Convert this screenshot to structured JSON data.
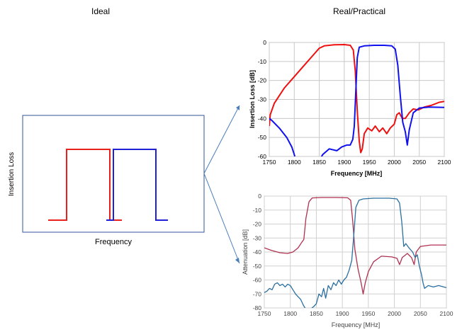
{
  "headings": {
    "ideal": "Ideal",
    "real": "Real/Practical"
  },
  "ideal_panel": {
    "ylabel": "Insertion Loss",
    "xlabel": "Frequency",
    "colors": {
      "frame": "#2f5597",
      "left": "#e8211d",
      "right": "#1f1fd6"
    }
  },
  "arrow_color": "#4a7ebb",
  "chart_data": [
    {
      "type": "line",
      "title": "",
      "xlabel": "Frequency [MHz]",
      "ylabel": "Insertion Loss [dB]",
      "xlim": [
        1750,
        2100
      ],
      "ylim": [
        -60,
        0
      ],
      "xticks": [
        "1750",
        "1800",
        "1850",
        "1900",
        "1950",
        "2000",
        "2050",
        "2100"
      ],
      "yticks": [
        "0",
        "-10",
        "-20",
        "-30",
        "-40",
        "-50",
        "-60"
      ],
      "grid": true,
      "series": [
        {
          "name": "red",
          "color": "#ee1111",
          "points": [
            [
              1750,
              -44
            ],
            [
              1752,
              -38
            ],
            [
              1760,
              -32
            ],
            [
              1780,
              -24
            ],
            [
              1800,
              -18
            ],
            [
              1820,
              -12
            ],
            [
              1840,
              -6
            ],
            [
              1850,
              -3
            ],
            [
              1860,
              -1.8
            ],
            [
              1880,
              -1.2
            ],
            [
              1900,
              -1.1
            ],
            [
              1912,
              -1.5
            ],
            [
              1918,
              -4
            ],
            [
              1922,
              -15
            ],
            [
              1926,
              -36
            ],
            [
              1930,
              -52
            ],
            [
              1933,
              -58
            ],
            [
              1936,
              -56
            ],
            [
              1940,
              -48
            ],
            [
              1947,
              -45
            ],
            [
              1955,
              -46.5
            ],
            [
              1962,
              -44
            ],
            [
              1970,
              -47
            ],
            [
              1977,
              -45
            ],
            [
              1985,
              -48
            ],
            [
              1992,
              -45
            ],
            [
              2000,
              -43
            ],
            [
              2005,
              -38
            ],
            [
              2010,
              -37
            ],
            [
              2016,
              -40
            ],
            [
              2022,
              -40
            ],
            [
              2030,
              -37
            ],
            [
              2038,
              -35
            ],
            [
              2048,
              -35.5
            ],
            [
              2060,
              -34
            ],
            [
              2075,
              -33
            ],
            [
              2090,
              -31.5
            ],
            [
              2100,
              -31
            ]
          ]
        },
        {
          "name": "blue",
          "color": "#1111ee",
          "points": [
            [
              1750,
              -40
            ],
            [
              1755,
              -41
            ],
            [
              1770,
              -45
            ],
            [
              1785,
              -50
            ],
            [
              1795,
              -55
            ],
            [
              1800,
              -59
            ],
            [
              1803,
              -62
            ],
            [
              1850,
              -62
            ],
            [
              1857,
              -59
            ],
            [
              1870,
              -56
            ],
            [
              1885,
              -57
            ],
            [
              1895,
              -55
            ],
            [
              1905,
              -54
            ],
            [
              1912,
              -54
            ],
            [
              1917,
              -51
            ],
            [
              1920,
              -44
            ],
            [
              1923,
              -26
            ],
            [
              1926,
              -8
            ],
            [
              1930,
              -2.5
            ],
            [
              1940,
              -1.8
            ],
            [
              1960,
              -1.5
            ],
            [
              1980,
              -1.5
            ],
            [
              1995,
              -1.8
            ],
            [
              2002,
              -3.5
            ],
            [
              2007,
              -12
            ],
            [
              2012,
              -28
            ],
            [
              2017,
              -42
            ],
            [
              2022,
              -47
            ],
            [
              2026,
              -54
            ],
            [
              2030,
              -46
            ],
            [
              2038,
              -37
            ],
            [
              2050,
              -34.5
            ],
            [
              2070,
              -34
            ],
            [
              2100,
              -34.2
            ]
          ]
        }
      ]
    },
    {
      "type": "line",
      "title": "",
      "xlabel": "Frequency [MHz]",
      "ylabel": "Attenuation [dB]",
      "xlim": [
        1750,
        2100
      ],
      "ylim": [
        -80,
        0
      ],
      "xticks": [
        "1750",
        "1800",
        "1850",
        "1900",
        "1950",
        "2000",
        "2050",
        "2100"
      ],
      "yticks": [
        "0",
        "-10",
        "-20",
        "-30",
        "-40",
        "-50",
        "-60",
        "-70",
        "-80"
      ],
      "grid": true,
      "series": [
        {
          "name": "magenta",
          "color": "#b03050",
          "points": [
            [
              1750,
              -37
            ],
            [
              1765,
              -39
            ],
            [
              1780,
              -40.5
            ],
            [
              1795,
              -41
            ],
            [
              1805,
              -40
            ],
            [
              1815,
              -37
            ],
            [
              1822,
              -33
            ],
            [
              1826,
              -31
            ],
            [
              1830,
              -16
            ],
            [
              1836,
              -4
            ],
            [
              1842,
              -1.3
            ],
            [
              1860,
              -1
            ],
            [
              1890,
              -1
            ],
            [
              1910,
              -1.2
            ],
            [
              1916,
              -3
            ],
            [
              1920,
              -18
            ],
            [
              1924,
              -38
            ],
            [
              1930,
              -52
            ],
            [
              1936,
              -62
            ],
            [
              1940,
              -70
            ],
            [
              1944,
              -62
            ],
            [
              1950,
              -54
            ],
            [
              1960,
              -47
            ],
            [
              1975,
              -43
            ],
            [
              1995,
              -43.5
            ],
            [
              2005,
              -44.5
            ],
            [
              2010,
              -49
            ],
            [
              2015,
              -44
            ],
            [
              2025,
              -41
            ],
            [
              2033,
              -44
            ],
            [
              2038,
              -49
            ],
            [
              2042,
              -40
            ],
            [
              2050,
              -36
            ],
            [
              2070,
              -35
            ],
            [
              2100,
              -35
            ]
          ]
        },
        {
          "name": "teal",
          "color": "#2a6fa0",
          "points": [
            [
              1750,
              -69
            ],
            [
              1755,
              -68
            ],
            [
              1760,
              -66
            ],
            [
              1765,
              -67
            ],
            [
              1770,
              -63
            ],
            [
              1775,
              -62
            ],
            [
              1780,
              -64
            ],
            [
              1785,
              -63
            ],
            [
              1790,
              -65
            ],
            [
              1795,
              -63
            ],
            [
              1800,
              -64
            ],
            [
              1805,
              -67
            ],
            [
              1810,
              -70
            ],
            [
              1815,
              -72
            ],
            [
              1820,
              -74
            ],
            [
              1825,
              -78
            ],
            [
              1830,
              -81
            ],
            [
              1838,
              -81
            ],
            [
              1845,
              -79
            ],
            [
              1850,
              -77
            ],
            [
              1855,
              -70
            ],
            [
              1860,
              -72
            ],
            [
              1864,
              -66
            ],
            [
              1868,
              -73
            ],
            [
              1873,
              -64
            ],
            [
              1878,
              -67
            ],
            [
              1883,
              -62
            ],
            [
              1888,
              -64
            ],
            [
              1893,
              -60
            ],
            [
              1898,
              -63
            ],
            [
              1903,
              -60
            ],
            [
              1908,
              -58
            ],
            [
              1913,
              -53
            ],
            [
              1918,
              -46
            ],
            [
              1922,
              -28
            ],
            [
              1926,
              -8
            ],
            [
              1932,
              -3
            ],
            [
              1940,
              -2
            ],
            [
              1960,
              -1.5
            ],
            [
              1990,
              -1.5
            ],
            [
              2005,
              -2
            ],
            [
              2010,
              -5
            ],
            [
              2014,
              -18
            ],
            [
              2018,
              -36
            ],
            [
              2022,
              -34
            ],
            [
              2028,
              -37
            ],
            [
              2035,
              -40
            ],
            [
              2040,
              -44
            ],
            [
              2044,
              -42
            ],
            [
              2048,
              -50
            ],
            [
              2052,
              -56
            ],
            [
              2055,
              -62
            ],
            [
              2058,
              -66
            ],
            [
              2065,
              -64
            ],
            [
              2075,
              -65
            ],
            [
              2085,
              -64
            ],
            [
              2095,
              -65
            ],
            [
              2100,
              -65.5
            ]
          ]
        }
      ]
    }
  ]
}
